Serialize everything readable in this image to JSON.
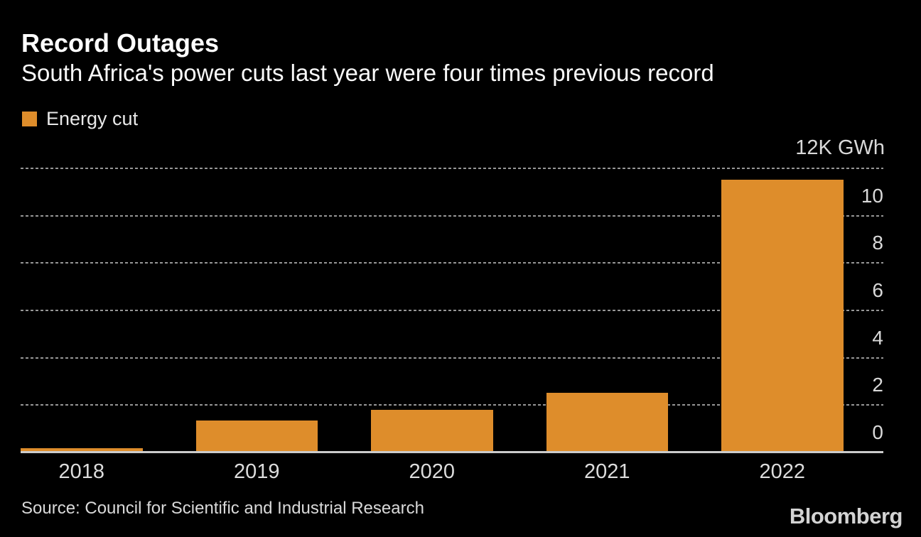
{
  "chart_data": {
    "type": "bar",
    "title": "Record Outages",
    "subtitle": "South Africa's power cuts last year were four times previous record",
    "categories": [
      "2018",
      "2019",
      "2020",
      "2021",
      "2022"
    ],
    "series": [
      {
        "name": "Energy cut",
        "values": [
          0.19,
          1.35,
          1.8,
          2.52,
          11.53
        ]
      }
    ],
    "unit": "K GWh",
    "unit_label": "12K GWh",
    "ylim": [
      0,
      12
    ],
    "yticks": [
      0,
      2,
      4,
      6,
      8,
      10
    ],
    "grid_values": [
      2,
      4,
      6,
      8,
      10,
      12
    ],
    "grid_style": "dashed",
    "legend_position": "top-left",
    "bar_color": "#DE8D2B",
    "grid_color": "#969696",
    "axis_line_color": "#CBCBCB",
    "background_color": "#000000",
    "text_color": "#D9D9D9"
  },
  "footer": {
    "source": "Source: Council for Scientific and Industrial Research",
    "brand": "Bloomberg"
  }
}
